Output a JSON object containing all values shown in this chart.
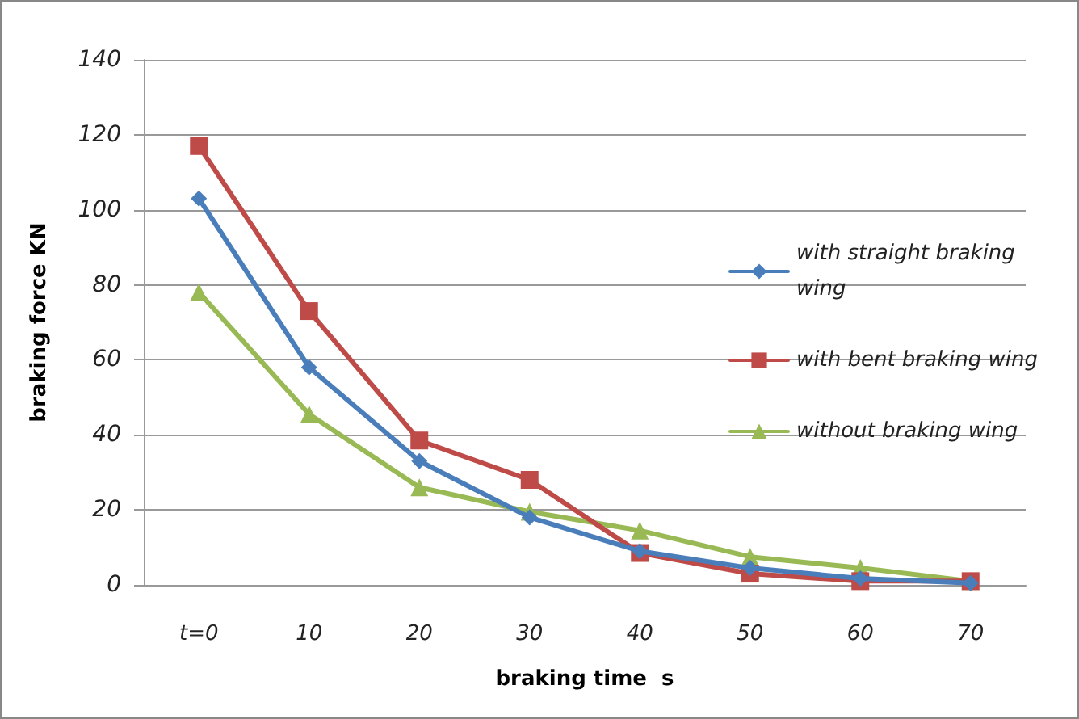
{
  "chart_data": {
    "type": "line",
    "xlabel": "braking time  s",
    "ylabel": "braking force KN",
    "categories": [
      "t=0",
      "10",
      "20",
      "30",
      "40",
      "50",
      "60",
      "70"
    ],
    "series": [
      {
        "name": "with straight braking wing",
        "color": "#4a7ebb",
        "marker": "diamond",
        "values": [
          103,
          58,
          33,
          18,
          9,
          4.5,
          1.7,
          0.5
        ]
      },
      {
        "name": "with bent braking wing",
        "color": "#be4b48",
        "marker": "square",
        "values": [
          117,
          73,
          38.5,
          28,
          8.5,
          3,
          1,
          1
        ]
      },
      {
        "name": "without braking wing",
        "color": "#98b954",
        "marker": "triangle",
        "values": [
          78,
          45.5,
          26,
          19.5,
          14.5,
          7.5,
          4.5,
          1
        ]
      }
    ],
    "ylim": [
      0,
      140
    ],
    "yticks": [
      0,
      20,
      40,
      60,
      80,
      100,
      120,
      140
    ],
    "grid": "y",
    "legend": "right",
    "line_style": "solid"
  }
}
